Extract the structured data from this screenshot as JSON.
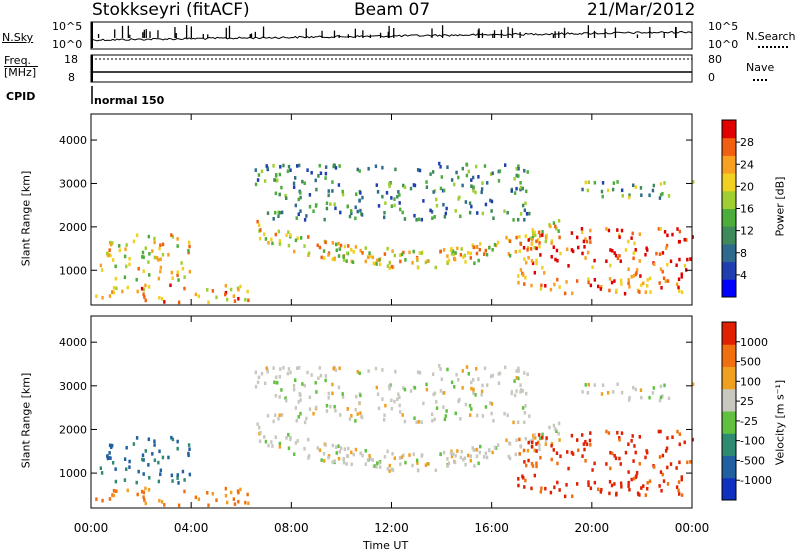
{
  "header": {
    "station": "Stokkseyri (fitACF)",
    "beam": "Beam 07",
    "date": "21/Mar/2012"
  },
  "noise_panel": {
    "left_label": "N.Sky",
    "left_ticks": [
      "10^5",
      "10^0"
    ],
    "right_label": "N.Search",
    "right_ticks": [
      "10^5",
      "10^0"
    ]
  },
  "freq_panel": {
    "left_label_1": "Freq.",
    "left_label_2": "[MHz]",
    "left_ticks": [
      "18",
      "8"
    ],
    "right_label": "Nave",
    "right_ticks": [
      "80",
      "0"
    ]
  },
  "cpid": {
    "label": "CPID",
    "mode": "normal 150"
  },
  "x_axis": {
    "label": "Time UT",
    "ticks": [
      "00:00",
      "04:00",
      "08:00",
      "12:00",
      "16:00",
      "20:00",
      "00:00"
    ]
  },
  "power_panel": {
    "ylabel": "Slant Range [km]",
    "yticks": [
      "1000",
      "2000",
      "3000",
      "4000"
    ],
    "colorbar_label": "Power [dB]",
    "colorbar_ticks": [
      "4",
      "8",
      "12",
      "16",
      "20",
      "24",
      "28"
    ],
    "colors": [
      "#0000ff",
      "#1f3fb0",
      "#2e6a8c",
      "#3f8a5a",
      "#4dad3a",
      "#9fcf30",
      "#f0d020",
      "#f8a020",
      "#f06010",
      "#e00000"
    ]
  },
  "velocity_panel": {
    "ylabel": "Slant Range [km]",
    "yticks": [
      "1000",
      "2000",
      "3000",
      "4000"
    ],
    "colorbar_label": "Velocity [m s⁻¹]",
    "colorbar_ticks": [
      "1000",
      "500",
      "100",
      "25",
      "-25",
      "-100",
      "-500",
      "-1000"
    ],
    "colors": [
      "#1030c0",
      "#2060a0",
      "#2e8a70",
      "#60c040",
      "#c8c8c0",
      "#f0a020",
      "#f07010",
      "#e02000"
    ]
  },
  "chart_data": {
    "type": "heatmap",
    "x_range": [
      "00:00",
      "24:00"
    ],
    "y_range_km": [
      200,
      4600
    ],
    "power_db_range": [
      0,
      30
    ],
    "velocity_range": [
      -1000,
      1000
    ],
    "features": [
      {
        "name": "near-range band",
        "t_start": 0.0,
        "t_end": 6.5,
        "range_km": [
          300,
          700
        ],
        "power_db": 22,
        "velocity": -150
      },
      {
        "name": "early E/F scatter",
        "t_start": 0.3,
        "t_end": 4.0,
        "range_km": [
          800,
          1900
        ],
        "power_db": 20,
        "velocity": 400
      },
      {
        "name": "main arc",
        "t_start": 6.5,
        "t_end": 18.8,
        "range_km": [
          1200,
          2100
        ],
        "power_db": 20,
        "velocity": 0
      },
      {
        "name": "high range patch",
        "t_start": 6.5,
        "t_end": 17.5,
        "range_km": [
          2200,
          3500
        ],
        "power_db": 10,
        "velocity": 0
      },
      {
        "name": "evening scatter",
        "t_start": 17.0,
        "t_end": 24.0,
        "range_km": [
          500,
          2000
        ],
        "power_db": 25,
        "velocity": -700
      },
      {
        "name": "evening high range",
        "t_start": 19.5,
        "t_end": 24.0,
        "range_km": [
          2700,
          3100
        ],
        "power_db": 12,
        "velocity": 0
      }
    ]
  }
}
